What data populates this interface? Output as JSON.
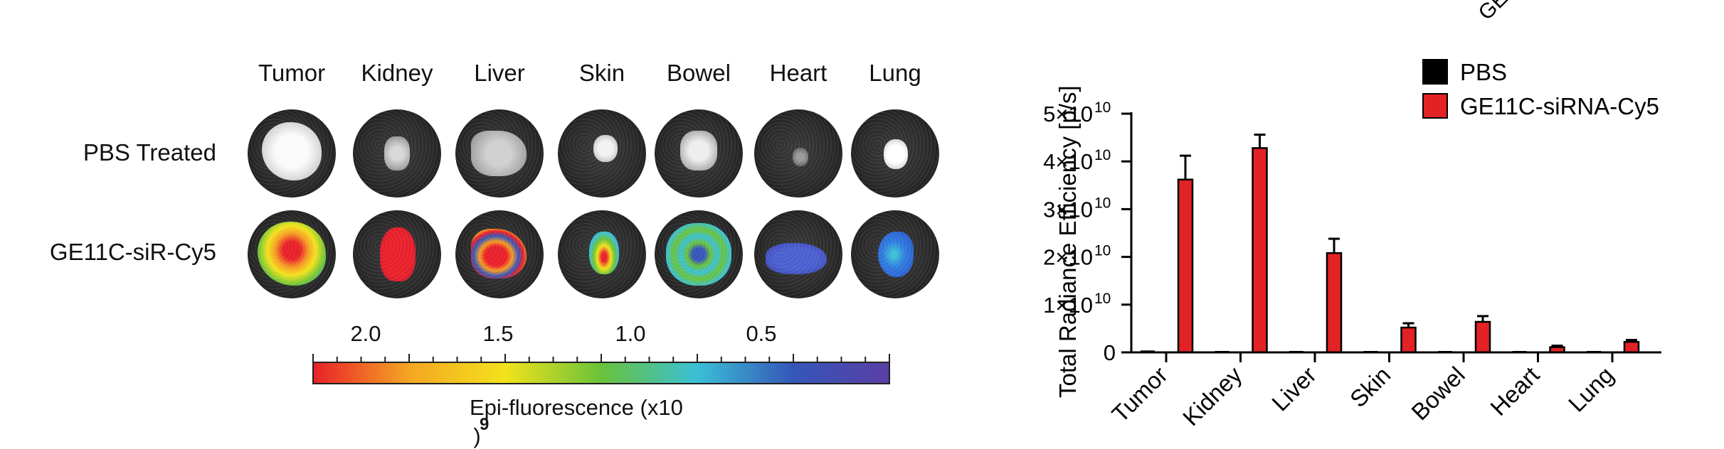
{
  "panel_a": {
    "columns": [
      "Tumor",
      "Kidney",
      "Liver",
      "Skin",
      "Bowel",
      "Heart",
      "Lung"
    ],
    "rows": [
      "PBS Treated",
      "GE11C-siR-Cy5"
    ],
    "colorbar": {
      "tick_labels": [
        "2.0",
        "1.5",
        "1.0",
        "0.5"
      ],
      "label": "Epi-fluorescence (x10",
      "exponent": "9",
      "label_close": ")",
      "colors": [
        "#e8202a",
        "#f5a623",
        "#f3e21c",
        "#69c23a",
        "#3bbfd6",
        "#3556b8",
        "#5a3fa5"
      ]
    }
  },
  "chart_data": {
    "type": "bar",
    "categories": [
      "Tumor",
      "Kidney",
      "Liver",
      "Skin",
      "Bowel",
      "Heart",
      "Lung"
    ],
    "series": [
      {
        "name": "PBS",
        "color": "#000000",
        "values": [
          0.04,
          0.0,
          0.03,
          0.0,
          0.0,
          0.0,
          0.0
        ],
        "errors": [
          0.0,
          0.0,
          0.0,
          0.0,
          0.0,
          0.0,
          0.0
        ]
      },
      {
        "name": "GE11C-siRNA-Cy5",
        "color": "#e32226",
        "values": [
          3.62,
          4.28,
          2.08,
          0.52,
          0.64,
          0.11,
          0.22
        ],
        "errors": [
          0.5,
          0.28,
          0.3,
          0.09,
          0.12,
          0.03,
          0.04
        ]
      }
    ],
    "ylabel": "Total Radiance Efficiency [p/s]",
    "ylim": [
      0,
      5
    ],
    "y_scale_note": "values ×10^10",
    "yticks": [
      "0",
      "1×10",
      "2×10",
      "3×10",
      "4×10",
      "5×10"
    ],
    "ytick_exponent": "10",
    "legend_position": "top-right",
    "top_clipped_text": "GE"
  }
}
